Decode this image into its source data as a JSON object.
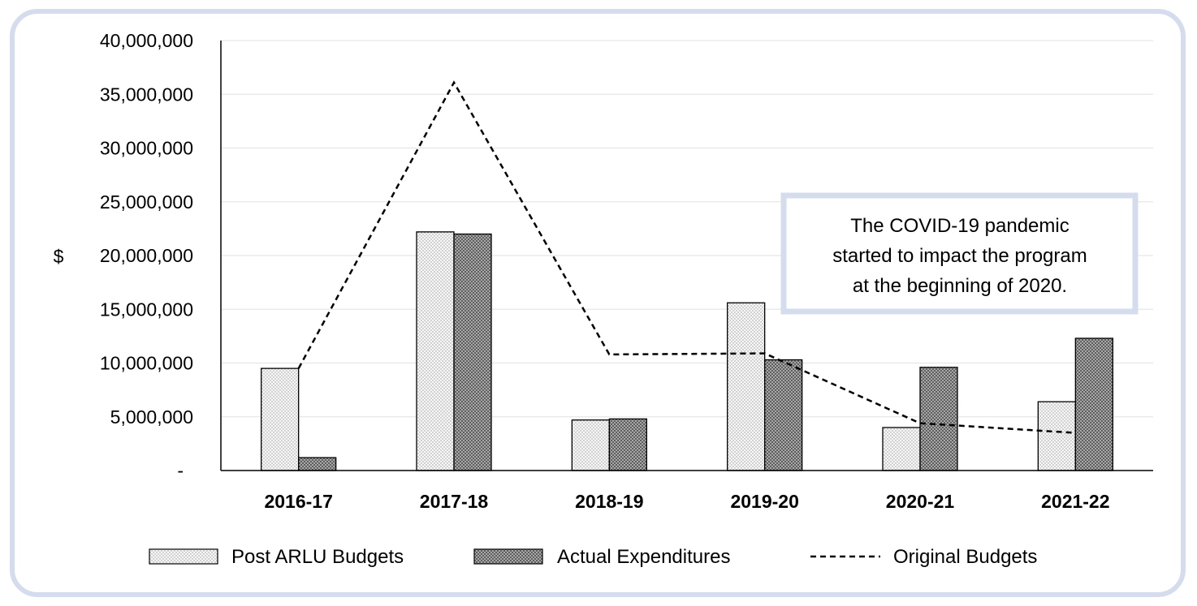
{
  "chart_data": {
    "type": "bar",
    "categories": [
      "2016-17",
      "2017-18",
      "2018-19",
      "2019-20",
      "2020-21",
      "2021-22"
    ],
    "series": [
      {
        "name": "Post ARLU Budgets",
        "type": "bar",
        "values": [
          9500000,
          22200000,
          4700000,
          15600000,
          4000000,
          6400000
        ]
      },
      {
        "name": "Actual Expenditures",
        "type": "bar",
        "values": [
          1200000,
          22000000,
          4800000,
          10300000,
          9600000,
          12300000
        ]
      },
      {
        "name": "Original Budgets",
        "type": "line",
        "style": "dashed",
        "values": [
          9500000,
          36100000,
          10800000,
          10900000,
          4400000,
          3500000
        ]
      }
    ],
    "ylabel": "$",
    "xlabel": "",
    "ylim": [
      0,
      40000000
    ],
    "yticks": [
      {
        "value": 0,
        "label": "-"
      },
      {
        "value": 5000000,
        "label": "5,000,000"
      },
      {
        "value": 10000000,
        "label": "10,000,000"
      },
      {
        "value": 15000000,
        "label": "15,000,000"
      },
      {
        "value": 20000000,
        "label": "20,000,000"
      },
      {
        "value": 25000000,
        "label": "25,000,000"
      },
      {
        "value": 30000000,
        "label": "30,000,000"
      },
      {
        "value": 35000000,
        "label": "35,000,000"
      },
      {
        "value": 40000000,
        "label": "40,000,000"
      }
    ],
    "grid": true,
    "legend": "bottom",
    "annotation": {
      "lines": [
        "The COVID-19 pandemic",
        "started to impact the program",
        "at the beginning of 2020."
      ]
    },
    "colors": {
      "post_arlu_fill": "#f2f2f2",
      "actual_fill": "#7f7f7f",
      "line": "#000000",
      "grid": "#e6e6e6",
      "annotation_border": "#d5dcee",
      "frame_border": "#d5dcee"
    }
  }
}
